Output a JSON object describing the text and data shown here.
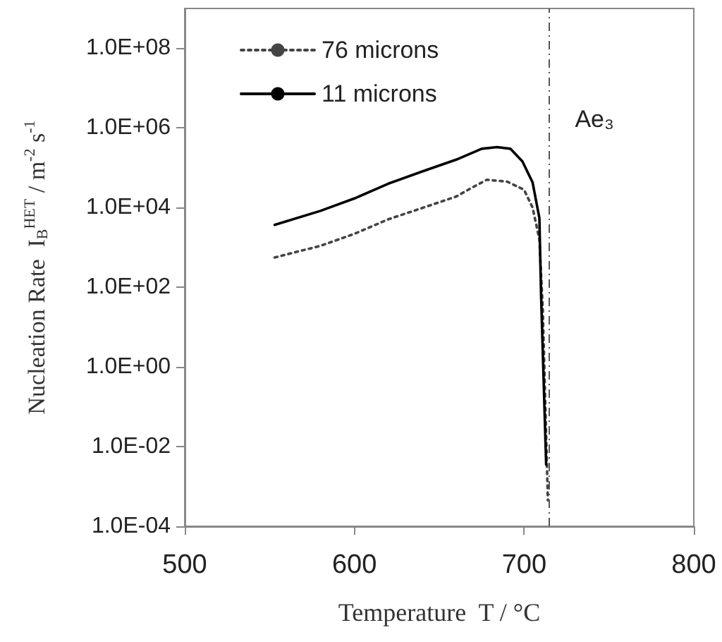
{
  "chart_data": {
    "type": "line",
    "xlabel": "Temperature  T / °C",
    "ylabel": "Nucleation Rate  I$_{B}$$^{HET}$ / m$^{-2}$ s$^{-1}$",
    "series": [
      {
        "name": "76 microns",
        "color": "#444444",
        "line_style": "dotted",
        "x": [
          553,
          580,
          600,
          620,
          640,
          660,
          670,
          678,
          690,
          700,
          705,
          709,
          711,
          714
        ],
        "values": [
          560,
          1100,
          2200,
          5100,
          9800,
          19000,
          33000,
          50000,
          45000,
          28000,
          10000,
          1600,
          28,
          0.00045
        ]
      },
      {
        "name": "11 microns",
        "color": "#000000",
        "line_style": "solid",
        "x": [
          553,
          580,
          600,
          620,
          640,
          660,
          675,
          684,
          692,
          699,
          705,
          709,
          710,
          713
        ],
        "values": [
          3700,
          8300,
          17000,
          40000,
          81000,
          160000,
          300000,
          330000,
          300000,
          145000,
          43000,
          5500,
          63,
          0.0035
        ]
      }
    ],
    "xlim": [
      500,
      800
    ],
    "xticks": [
      500,
      600,
      700,
      800
    ],
    "log": "y",
    "ylim": [
      0.0001,
      1000000000
    ],
    "yticks": [
      {
        "value": 0.0001,
        "label": "1.0E-04"
      },
      {
        "value": 0.01,
        "label": "1.0E-02"
      },
      {
        "value": 1,
        "label": "1.0E+00"
      },
      {
        "value": 100,
        "label": "1.0E+02"
      },
      {
        "value": 10000,
        "label": "1.0E+04"
      },
      {
        "value": 1000000,
        "label": "1.0E+06"
      },
      {
        "value": 100000000,
        "label": "1.0E+08"
      }
    ],
    "ref_lines": [
      {
        "axis": "x",
        "value": 715,
        "label": "Ae₃",
        "color": "#555555",
        "line_style": "dashed"
      }
    ],
    "legend": "top left",
    "marker": "none",
    "grid": false
  }
}
